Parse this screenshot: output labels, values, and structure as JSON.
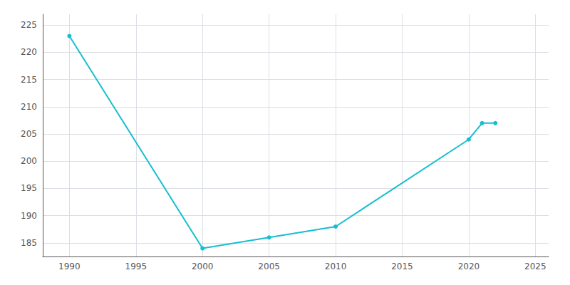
{
  "chart_data": {
    "type": "line",
    "x": [
      1990,
      2000,
      2005,
      2010,
      2020,
      2021,
      2022
    ],
    "values": [
      223,
      184,
      186,
      188,
      204,
      207,
      207
    ],
    "color": "#17becf",
    "marker": "circle",
    "xlim": [
      1988.0,
      2026.0
    ],
    "ylim": [
      182.5,
      227.0
    ],
    "xticks": [
      1990,
      1995,
      2000,
      2005,
      2010,
      2015,
      2020,
      2025
    ],
    "yticks": [
      185,
      190,
      195,
      200,
      205,
      210,
      215,
      220,
      225
    ],
    "grid": true
  }
}
